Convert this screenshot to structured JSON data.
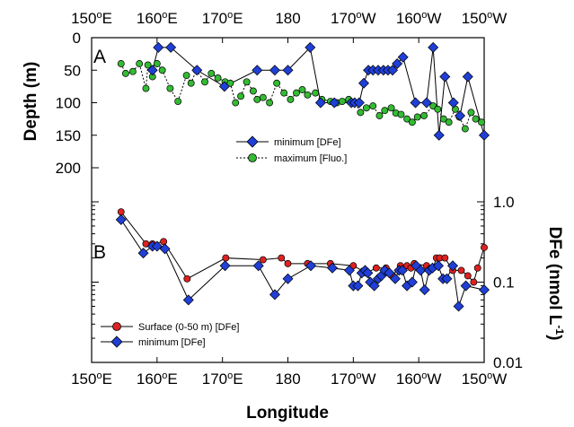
{
  "chart_data": [
    {
      "panel": "A",
      "type": "line",
      "xlabel": "",
      "ylabel": "Depth (m)",
      "x_ticks": [
        "150°E",
        "160°E",
        "170°E",
        "180",
        "170°W",
        "160°W",
        "150°W"
      ],
      "y_ticks": [
        "0",
        "50",
        "100",
        "150",
        "200"
      ],
      "ylim": [
        200,
        0
      ],
      "xlim": [
        150,
        210
      ],
      "legend_placement": "center-right",
      "series": [
        {
          "name": "minimum [DFe]",
          "marker": "diamond",
          "color": "#1f3fd6",
          "line": "solid",
          "x": [
            159.3,
            160.2,
            162.1,
            166.1,
            170.3,
            175.3,
            178.0,
            180.0,
            183.4,
            185.0,
            187.1,
            189.7,
            190.2,
            190.9,
            191.6,
            192.3,
            193.0,
            193.8,
            194.6,
            195.3,
            196.0,
            196.7,
            197.6,
            199.5,
            201.2,
            202.2,
            203.1,
            204.0,
            205.3,
            206.3,
            207.5,
            210.0
          ],
          "y": [
            50,
            15,
            15,
            50,
            75,
            50,
            50,
            50,
            15,
            100,
            100,
            100,
            100,
            100,
            70,
            50,
            50,
            50,
            50,
            50,
            50,
            40,
            30,
            100,
            100,
            15,
            150,
            60,
            100,
            120,
            60,
            150
          ]
        },
        {
          "name": "maximum [Fluo.]",
          "marker": "circle",
          "color": "#33bb33",
          "line": "dotted",
          "x": [
            154.5,
            155.2,
            156.3,
            157.3,
            158.3,
            158.6,
            159.3,
            160.0,
            160.8,
            162.0,
            163.2,
            164.5,
            165.2,
            166.0,
            167.3,
            168.3,
            169.3,
            170.4,
            171.2,
            172.0,
            172.8,
            173.7,
            174.7,
            175.3,
            176.2,
            177.2,
            178.3,
            179.4,
            180.4,
            181.3,
            182.2,
            183.0,
            184.2,
            185.2,
            186.5,
            187.5,
            188.3,
            189.3,
            190.3,
            191.1,
            192.0,
            193.0,
            194.0,
            194.8,
            195.8,
            196.5,
            197.3,
            198.2,
            199.0,
            199.8,
            200.8,
            202.2,
            202.9,
            203.8,
            204.6,
            205.6,
            206.2,
            207.1,
            208.0,
            208.7,
            209.6
          ],
          "y": [
            40,
            55,
            52,
            40,
            78,
            42,
            60,
            40,
            50,
            78,
            98,
            58,
            70,
            50,
            68,
            55,
            62,
            68,
            70,
            100,
            90,
            68,
            82,
            95,
            92,
            100,
            70,
            85,
            95,
            85,
            80,
            88,
            85,
            95,
            98,
            100,
            98,
            95,
            100,
            115,
            108,
            105,
            120,
            112,
            108,
            116,
            118,
            125,
            130,
            122,
            120,
            105,
            110,
            125,
            130,
            110,
            122,
            140,
            115,
            125,
            130
          ]
        }
      ]
    },
    {
      "panel": "B",
      "type": "line",
      "xlabel": "Longitude",
      "ylabel": "DFe (nmol L-1)",
      "ylabel_main": "DFe (nmol L",
      "ylabel_sup": "-1",
      "ylabel_close": ")",
      "y_scale": "log",
      "x_ticks": [
        "150°E",
        "160°E",
        "170°E",
        "180",
        "170°W",
        "160°W",
        "150°W"
      ],
      "y_ticks": [
        "0.01",
        "0.1",
        "1.0"
      ],
      "ylim": [
        0.01,
        1.0
      ],
      "xlim": [
        150,
        210
      ],
      "legend_placement": "bottom-left",
      "series": [
        {
          "name": "Surface (0-50 m) [DFe]",
          "marker": "circle",
          "color": "#dd2222",
          "line": "solid",
          "x": [
            154.5,
            158.3,
            159.3,
            161.0,
            164.6,
            170.5,
            176.2,
            179.0,
            180.0,
            183.0,
            186.5,
            190.0,
            192.0,
            193.5,
            195.0,
            196.0,
            197.2,
            198.2,
            198.8,
            199.3,
            201.2,
            202.2,
            202.7,
            203.2,
            204.0,
            205.2,
            206.5,
            207.5,
            208.4,
            209.0,
            210.0
          ],
          "y": [
            0.75,
            0.3,
            0.3,
            0.32,
            0.11,
            0.2,
            0.19,
            0.2,
            0.17,
            0.17,
            0.17,
            0.16,
            0.13,
            0.15,
            0.15,
            0.12,
            0.16,
            0.16,
            0.15,
            0.17,
            0.16,
            0.15,
            0.2,
            0.2,
            0.2,
            0.14,
            0.14,
            0.12,
            0.1,
            0.15,
            0.27
          ]
        },
        {
          "name": "minimum [DFe]",
          "marker": "diamond",
          "color": "#1f3fd6",
          "line": "solid",
          "x": [
            154.5,
            157.9,
            159.3,
            160.0,
            161.2,
            164.8,
            170.4,
            175.5,
            178.0,
            180.0,
            183.5,
            186.8,
            189.4,
            190.0,
            190.7,
            191.3,
            191.8,
            192.2,
            192.6,
            193.2,
            193.8,
            194.3,
            194.8,
            195.5,
            196.4,
            197.0,
            197.5,
            198.2,
            199.0,
            199.6,
            200.3,
            200.9,
            201.6,
            202.1,
            203.0,
            203.7,
            204.3,
            205.2,
            206.1,
            207.2,
            210.0
          ],
          "y": [
            0.6,
            0.23,
            0.28,
            0.28,
            0.26,
            0.06,
            0.16,
            0.16,
            0.07,
            0.11,
            0.16,
            0.15,
            0.14,
            0.09,
            0.09,
            0.13,
            0.14,
            0.13,
            0.1,
            0.09,
            0.11,
            0.12,
            0.14,
            0.13,
            0.11,
            0.14,
            0.14,
            0.09,
            0.1,
            0.16,
            0.14,
            0.08,
            0.14,
            0.15,
            0.16,
            0.11,
            0.11,
            0.16,
            0.05,
            0.09,
            0.08
          ]
        }
      ]
    }
  ],
  "shared": {
    "xlabel": "Longitude",
    "x_top_ticks": [
      "150°E",
      "160°E",
      "170°E",
      "180",
      "170°W",
      "160°W",
      "150°W"
    ],
    "x_bottom_ticks": [
      "150°E",
      "160°E",
      "170°E",
      "180",
      "170°W",
      "160°W",
      "150°W"
    ]
  }
}
